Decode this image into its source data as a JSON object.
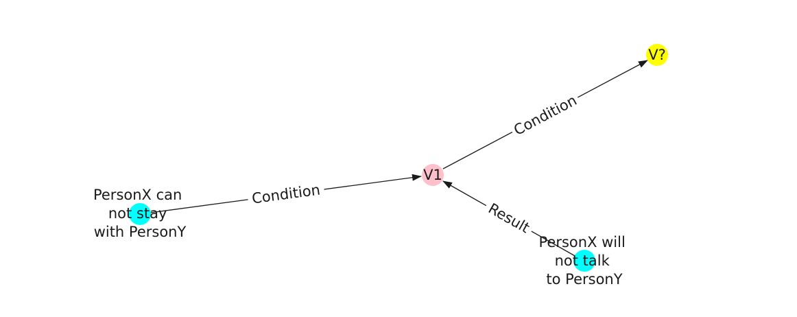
{
  "colors": {
    "pink": "#ffc0cb",
    "yellow": "#ffff00",
    "cyan": "#00ffff",
    "edge": "#1a1a1a"
  },
  "nodes": {
    "v1": {
      "label": "V1",
      "color": "pink"
    },
    "vq": {
      "label": "V?",
      "color": "yellow"
    },
    "cannot_stay": {
      "lines": [
        "PersonX can",
        "not stay",
        "with PersonY"
      ],
      "color": "cyan"
    },
    "will_not_talk": {
      "lines": [
        "PersonX will",
        "not talk",
        "to PersonY"
      ],
      "color": "cyan"
    }
  },
  "edges": {
    "v1_to_vq": {
      "label": "Condition",
      "from": "v1",
      "to": "vq"
    },
    "stay_to_v1": {
      "label": "Condition",
      "from": "cannot_stay",
      "to": "v1"
    },
    "talk_to_v1": {
      "label": "Result",
      "from": "will_not_talk",
      "to": "v1"
    }
  }
}
